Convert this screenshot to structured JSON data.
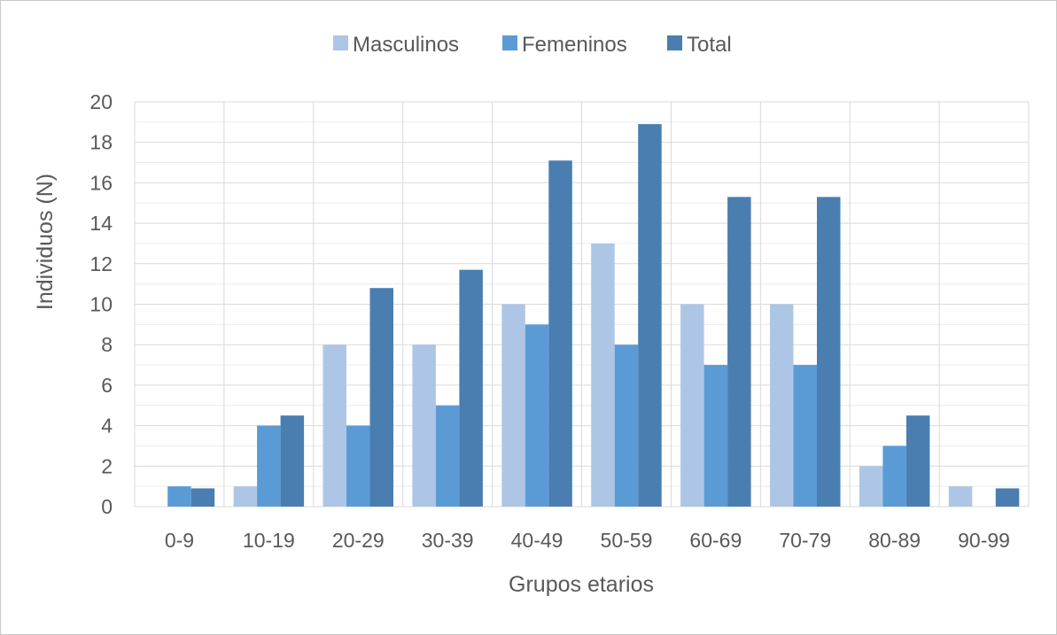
{
  "chart_data": {
    "type": "bar",
    "title": "",
    "xlabel": "Grupos etarios",
    "ylabel": "Individuos (N)",
    "ylim": [
      0,
      20
    ],
    "ytick_step": 2,
    "grid": true,
    "legend_position": "top-center",
    "categories": [
      "0-9",
      "10-19",
      "20-29",
      "30-39",
      "40-49",
      "50-59",
      "60-69",
      "70-79",
      "80-89",
      "90-99"
    ],
    "series": [
      {
        "name": "Masculinos",
        "color": "#aec6e6",
        "values": [
          0,
          1,
          8,
          8,
          10,
          13,
          10,
          10,
          2,
          1
        ]
      },
      {
        "name": "Femeninos",
        "color": "#5b9bd5",
        "values": [
          1,
          4,
          4,
          5,
          9,
          8,
          7,
          7,
          3,
          0
        ]
      },
      {
        "name": "Total",
        "color": "#4a7eb0",
        "values": [
          0.9,
          4.5,
          10.8,
          11.7,
          17.1,
          18.9,
          15.3,
          15.3,
          4.5,
          0.9
        ]
      }
    ]
  }
}
